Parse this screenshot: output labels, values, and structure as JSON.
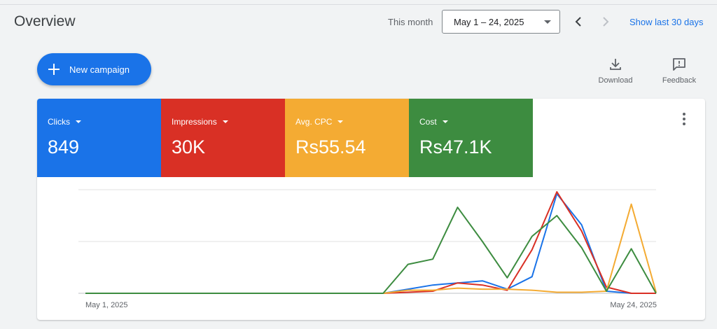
{
  "header": {
    "title": "Overview",
    "period_label": "This month",
    "date_range": "May 1 – 24, 2025",
    "show_last": "Show last 30 days"
  },
  "actions": {
    "new_campaign": "New campaign",
    "download": "Download",
    "feedback": "Feedback"
  },
  "metrics": [
    {
      "label": "Clicks",
      "value": "849",
      "color": "#1a73e8"
    },
    {
      "label": "Impressions",
      "value": "30K",
      "color": "#d93025"
    },
    {
      "label": "Avg. CPC",
      "value": "Rs55.54",
      "color": "#f4ab33"
    },
    {
      "label": "Cost",
      "value": "Rs47.1K",
      "color": "#3d8c40"
    }
  ],
  "chart_data": {
    "type": "line",
    "x": [
      1,
      2,
      3,
      4,
      5,
      6,
      7,
      8,
      9,
      10,
      11,
      12,
      13,
      14,
      15,
      16,
      17,
      18,
      19,
      20,
      21,
      22,
      23,
      24
    ],
    "x_tick_labels": {
      "first": "May 1, 2025",
      "last": "May 24, 2025"
    },
    "ylim": [
      0,
      100
    ],
    "grid": true,
    "series": [
      {
        "name": "Clicks",
        "color": "#1a73e8",
        "values": [
          0,
          0,
          0,
          0,
          0,
          0,
          0,
          0,
          0,
          0,
          0,
          0,
          0,
          4,
          8,
          10,
          12,
          4,
          16,
          96,
          66,
          2,
          0,
          0
        ]
      },
      {
        "name": "Impressions",
        "color": "#d93025",
        "values": [
          0,
          0,
          0,
          0,
          0,
          0,
          0,
          0,
          0,
          0,
          0,
          0,
          0,
          1,
          2,
          10,
          8,
          3,
          42,
          98,
          60,
          6,
          0,
          0
        ]
      },
      {
        "name": "Avg. CPC",
        "color": "#f4ab33",
        "values": [
          0,
          0,
          0,
          0,
          0,
          0,
          0,
          0,
          0,
          0,
          0,
          0,
          0,
          3,
          3,
          5,
          4,
          4,
          3,
          1,
          1,
          2,
          86,
          1
        ]
      },
      {
        "name": "Cost",
        "color": "#3d8c40",
        "values": [
          0,
          0,
          0,
          0,
          0,
          0,
          0,
          0,
          0,
          0,
          0,
          0,
          0,
          28,
          33,
          83,
          50,
          15,
          55,
          75,
          44,
          2,
          43,
          0
        ]
      }
    ]
  }
}
